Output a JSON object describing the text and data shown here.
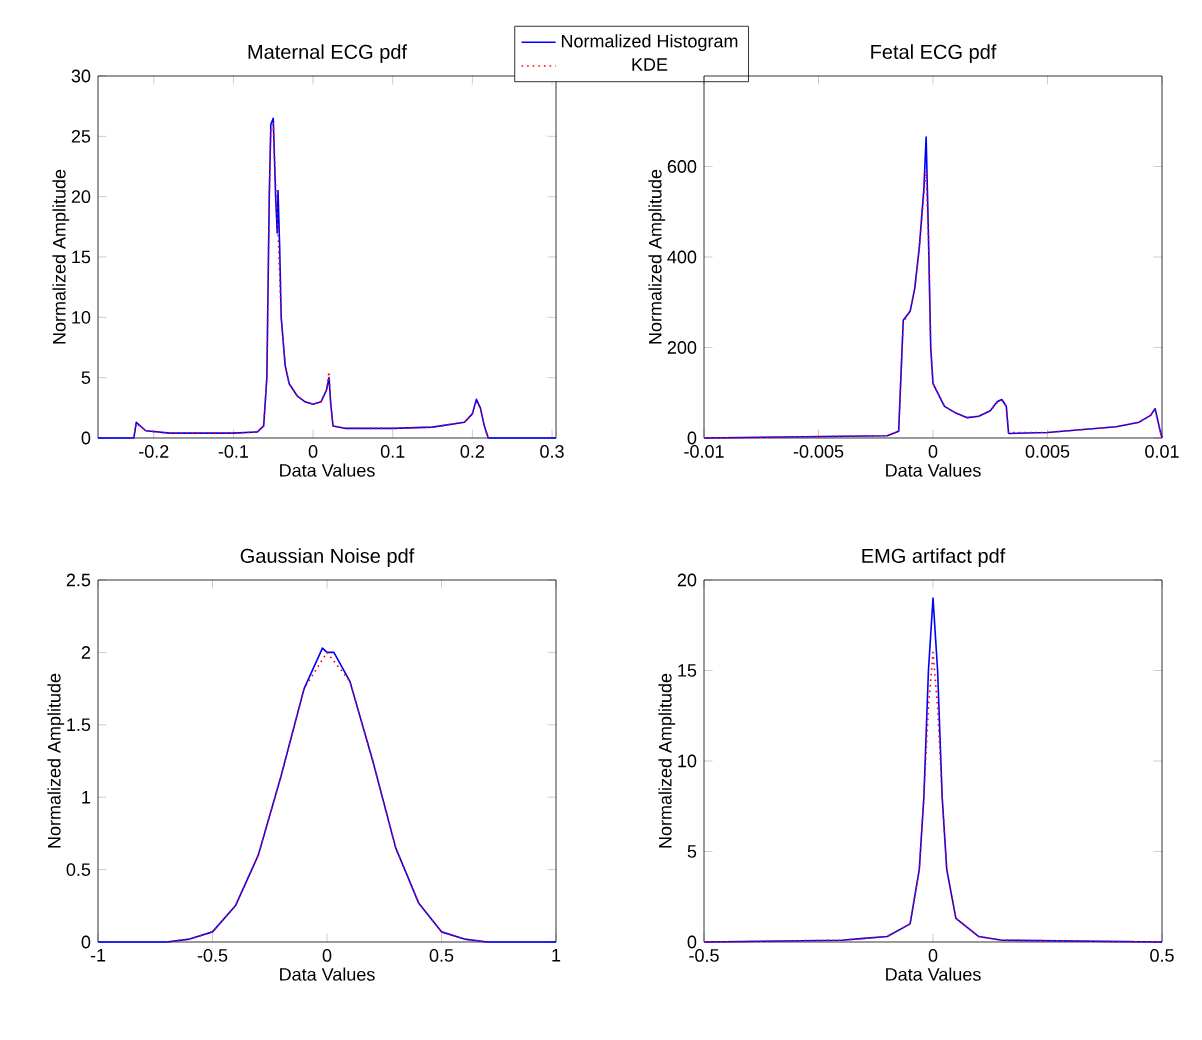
{
  "chart_data": [
    {
      "type": "line",
      "title": "Maternal ECG pdf",
      "xlabel": "Data Values",
      "ylabel": "Normalized Amplitude",
      "xlim": [
        -0.27,
        0.305
      ],
      "ylim": [
        0,
        30
      ],
      "xticks": [
        -0.2,
        -0.1,
        0,
        0.1,
        0.2,
        0.3
      ],
      "yticks": [
        0,
        5,
        10,
        15,
        20,
        25,
        30
      ],
      "legend": "top right",
      "series": [
        {
          "name": "Normalized Histogram",
          "color": "#0000ff",
          "line_style": "solid",
          "x": [
            -0.27,
            -0.225,
            -0.222,
            -0.21,
            -0.18,
            -0.1,
            -0.07,
            -0.062,
            -0.058,
            -0.055,
            -0.053,
            -0.05,
            -0.047,
            -0.045,
            -0.044,
            -0.042,
            -0.04,
            -0.035,
            -0.03,
            -0.02,
            -0.01,
            0,
            0.01,
            0.017,
            0.02,
            0.022,
            0.025,
            0.04,
            0.1,
            0.15,
            0.19,
            0.2,
            0.205,
            0.21,
            0.215,
            0.22,
            0.305
          ],
          "values": [
            0,
            0,
            1.3,
            0.6,
            0.4,
            0.4,
            0.5,
            1,
            5,
            20,
            26,
            26.5,
            20,
            17,
            20.5,
            16,
            10,
            6,
            4.5,
            3.5,
            3,
            2.8,
            3,
            4,
            5,
            3,
            1,
            0.8,
            0.8,
            0.9,
            1.3,
            2,
            3.2,
            2.5,
            1,
            0,
            0
          ]
        },
        {
          "name": "KDE",
          "color": "#ff0000",
          "line_style": "dotted",
          "x": [
            -0.225,
            -0.222,
            -0.21,
            -0.18,
            -0.1,
            -0.07,
            -0.062,
            -0.058,
            -0.055,
            -0.053,
            -0.05,
            -0.047,
            -0.044,
            -0.04,
            -0.035,
            -0.03,
            -0.02,
            -0.01,
            0,
            0.01,
            0.017,
            0.02,
            0.022,
            0.025,
            0.04,
            0.1,
            0.15,
            0.19,
            0.2,
            0.205,
            0.21,
            0.215,
            0.22
          ],
          "values": [
            0,
            1.2,
            0.6,
            0.4,
            0.4,
            0.5,
            1,
            5,
            20,
            25.5,
            26,
            21,
            17,
            10,
            6,
            4.5,
            3.5,
            3,
            2.8,
            3,
            4,
            5.5,
            3,
            1,
            0.8,
            0.8,
            0.9,
            1.3,
            2,
            3,
            2.5,
            1,
            0
          ]
        }
      ]
    },
    {
      "type": "line",
      "title": "Fetal ECG pdf",
      "xlabel": "Data Values",
      "ylabel": "Normalized Amplitude",
      "xlim": [
        -0.01,
        0.01
      ],
      "ylim": [
        0,
        800
      ],
      "xticks": [
        -0.01,
        -0.005,
        0,
        0.005,
        0.01
      ],
      "yticks": [
        0,
        200,
        400,
        600
      ],
      "series": [
        {
          "color": "#0000ff",
          "line_style": "solid",
          "x": [
            -0.01,
            -0.002,
            -0.0015,
            -0.0013,
            -0.001,
            -0.0008,
            -0.0006,
            -0.0004,
            -0.0003,
            -0.0002,
            -0.0001,
            0,
            0.0005,
            0.001,
            0.0015,
            0.002,
            0.0025,
            0.0028,
            0.003,
            0.0032,
            0.0033,
            0.005,
            0.008,
            0.009,
            0.0095,
            0.0097,
            0.0099,
            0.01
          ],
          "values": [
            0,
            5,
            15,
            260,
            280,
            330,
            420,
            550,
            665,
            450,
            200,
            120,
            70,
            55,
            45,
            48,
            60,
            80,
            85,
            70,
            10,
            12,
            25,
            35,
            50,
            65,
            20,
            0
          ]
        },
        {
          "color": "#ff0000",
          "line_style": "dotted",
          "x": [
            -0.01,
            -0.002,
            -0.0015,
            -0.0013,
            -0.001,
            -0.0008,
            -0.0006,
            -0.0004,
            -0.0003,
            -0.0002,
            -0.0001,
            0,
            0.0005,
            0.001,
            0.0015,
            0.002,
            0.0025,
            0.0028,
            0.003,
            0.0032,
            0.0033,
            0.005,
            0.008,
            0.009,
            0.0095,
            0.0097,
            0.0099,
            0.01
          ],
          "values": [
            0,
            5,
            15,
            255,
            280,
            330,
            420,
            540,
            590,
            440,
            200,
            120,
            70,
            55,
            45,
            48,
            60,
            78,
            83,
            70,
            12,
            12,
            25,
            35,
            50,
            60,
            20,
            0
          ]
        }
      ]
    },
    {
      "type": "line",
      "title": "Gaussian Noise pdf",
      "xlabel": "Data Values",
      "ylabel": "Normalized Amplitude",
      "xlim": [
        -1,
        1
      ],
      "ylim": [
        0,
        2.5
      ],
      "xticks": [
        -1,
        -0.5,
        0,
        0.5,
        1
      ],
      "yticks": [
        0,
        0.5,
        1,
        1.5,
        2,
        2.5
      ],
      "series": [
        {
          "color": "#0000ff",
          "line_style": "solid",
          "x": [
            -1,
            -0.7,
            -0.6,
            -0.5,
            -0.4,
            -0.3,
            -0.2,
            -0.1,
            -0.02,
            0,
            0.03,
            0.1,
            0.2,
            0.3,
            0.4,
            0.5,
            0.6,
            0.7,
            1
          ],
          "values": [
            0,
            0,
            0.02,
            0.07,
            0.25,
            0.6,
            1.15,
            1.75,
            2.03,
            2.0,
            2.0,
            1.8,
            1.25,
            0.65,
            0.27,
            0.07,
            0.02,
            0,
            0
          ]
        },
        {
          "color": "#ff0000",
          "line_style": "dotted",
          "x": [
            -0.7,
            -0.6,
            -0.5,
            -0.4,
            -0.3,
            -0.2,
            -0.1,
            0,
            0.1,
            0.2,
            0.3,
            0.4,
            0.5,
            0.6,
            0.7
          ],
          "values": [
            0,
            0.02,
            0.07,
            0.25,
            0.6,
            1.15,
            1.75,
            2.0,
            1.8,
            1.25,
            0.65,
            0.27,
            0.07,
            0.02,
            0
          ]
        }
      ]
    },
    {
      "type": "line",
      "title": "EMG artifact pdf",
      "xlabel": "Data Values",
      "ylabel": "Normalized Amplitude",
      "xlim": [
        -0.5,
        0.5
      ],
      "ylim": [
        0,
        20
      ],
      "xticks": [
        -0.5,
        0,
        0.5
      ],
      "yticks": [
        0,
        5,
        10,
        15,
        20
      ],
      "series": [
        {
          "color": "#0000ff",
          "line_style": "solid",
          "x": [
            -0.5,
            -0.2,
            -0.15,
            -0.1,
            -0.05,
            -0.03,
            -0.02,
            -0.01,
            0,
            0.01,
            0.02,
            0.03,
            0.05,
            0.1,
            0.15,
            0.5
          ],
          "values": [
            0,
            0.1,
            0.2,
            0.3,
            1,
            4,
            8,
            15,
            19,
            15,
            8,
            4,
            1.3,
            0.3,
            0.1,
            0
          ]
        },
        {
          "color": "#ff0000",
          "line_style": "dotted",
          "x": [
            -0.5,
            -0.2,
            -0.15,
            -0.1,
            -0.05,
            -0.03,
            -0.02,
            -0.01,
            0,
            0.01,
            0.02,
            0.03,
            0.05,
            0.1,
            0.15,
            0.5
          ],
          "values": [
            0,
            0.1,
            0.2,
            0.3,
            1,
            4,
            8,
            13,
            16,
            13,
            8,
            4,
            1.3,
            0.3,
            0.1,
            0
          ]
        }
      ]
    }
  ]
}
